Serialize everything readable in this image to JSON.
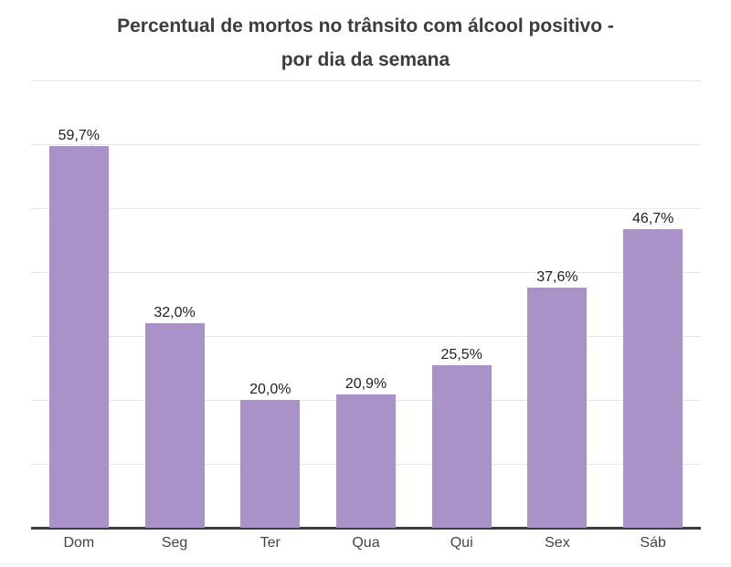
{
  "header": {
    "title_line1": "Percentual de mortos no trânsito com álcool positivo -",
    "title_line2": "por dia da semana"
  },
  "chart_data": {
    "type": "bar",
    "title": "Percentual de mortos no trânsito com álcool positivo - por dia da semana",
    "categories": [
      "Dom",
      "Seg",
      "Ter",
      "Qua",
      "Qui",
      "Sex",
      "Sáb"
    ],
    "values": [
      59.7,
      32.0,
      20.0,
      20.9,
      25.5,
      37.6,
      46.7
    ],
    "value_labels": [
      "59,7%",
      "32,0%",
      "20,0%",
      "20,9%",
      "25,5%",
      "37,6%",
      "46,7%"
    ],
    "xlabel": "",
    "ylabel": "",
    "ylim": [
      0,
      70
    ],
    "gridline_step": 10,
    "grid": true,
    "legend": "none",
    "colors": {
      "bar": "#a892c8",
      "gridline": "#e6e6e6",
      "axis": "#3d3d3d",
      "title": "#3c3c3c",
      "value_label": "#1f1f1f",
      "tick_label": "#444444"
    }
  }
}
